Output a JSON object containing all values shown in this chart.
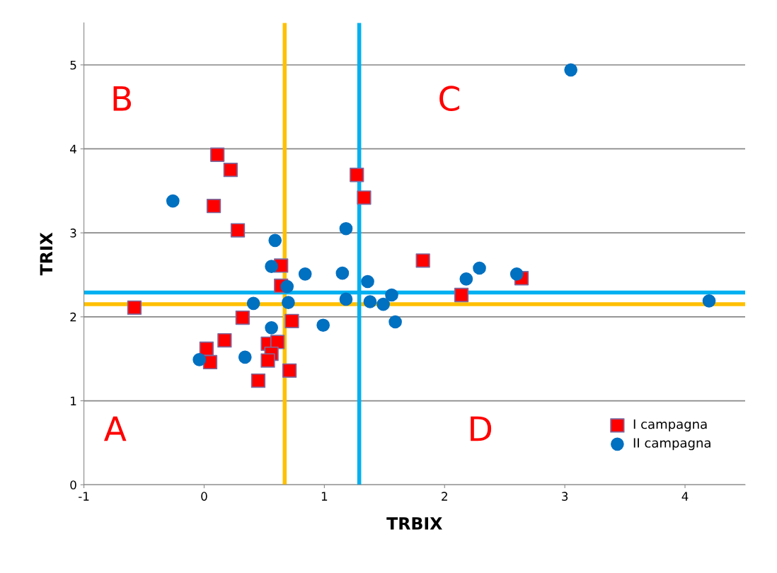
{
  "chart_data": {
    "type": "scatter",
    "xlabel": "TRBIX",
    "ylabel": "TRIX",
    "xlim": [
      -1,
      4.5
    ],
    "ylim": [
      0,
      5.5
    ],
    "xticks": [
      -1,
      0,
      1,
      2,
      3,
      4
    ],
    "yticks": [
      0,
      1,
      2,
      3,
      4,
      5
    ],
    "grid": "y",
    "legend": "bottom right",
    "series": [
      {
        "name": "I campagna",
        "color": "#ff0000",
        "marker": "square",
        "x": [
          -0.58,
          0.11,
          0.22,
          0.08,
          0.28,
          0.64,
          0.64,
          0.32,
          0.73,
          0.17,
          0.02,
          0.05,
          0.53,
          0.61,
          0.56,
          0.53,
          0.71,
          0.45,
          1.27,
          1.33,
          1.82,
          2.14,
          2.64
        ],
        "values": [
          2.11,
          3.93,
          3.75,
          3.32,
          3.03,
          2.61,
          2.37,
          1.99,
          1.95,
          1.72,
          1.62,
          1.46,
          1.68,
          1.7,
          1.56,
          1.48,
          1.36,
          1.24,
          3.69,
          3.42,
          2.67,
          2.26,
          2.46
        ]
      },
      {
        "name": "II campagna",
        "color": "#0070c0",
        "marker": "circle",
        "x": [
          -0.26,
          0.59,
          0.56,
          0.84,
          0.69,
          0.41,
          0.7,
          0.56,
          0.99,
          -0.04,
          0.34,
          1.18,
          1.15,
          1.36,
          1.18,
          1.38,
          1.49,
          1.56,
          1.59,
          2.18,
          2.29,
          2.6,
          3.05,
          4.2
        ],
        "values": [
          3.38,
          2.91,
          2.6,
          2.51,
          2.36,
          2.16,
          2.17,
          1.87,
          1.9,
          1.49,
          1.52,
          3.05,
          2.52,
          2.42,
          2.21,
          2.18,
          2.15,
          2.26,
          1.94,
          2.45,
          2.58,
          2.51,
          4.94,
          2.19
        ]
      }
    ],
    "ref_lines": [
      {
        "axis": "x",
        "value": 0.67,
        "color": "#ffc000"
      },
      {
        "axis": "y",
        "value": 2.15,
        "color": "#ffc000"
      },
      {
        "axis": "x",
        "value": 1.29,
        "color": "#00b0f0"
      },
      {
        "axis": "y",
        "value": 2.29,
        "color": "#00b0f0"
      }
    ],
    "annotations": [
      "A",
      "B",
      "C",
      "D"
    ]
  }
}
